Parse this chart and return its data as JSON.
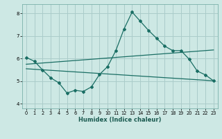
{
  "title": "",
  "xlabel": "Humidex (Indice chaleur)",
  "xlim": [
    -0.5,
    23.5
  ],
  "ylim": [
    3.8,
    8.4
  ],
  "yticks": [
    4,
    5,
    6,
    7,
    8
  ],
  "xticks": [
    0,
    1,
    2,
    3,
    4,
    5,
    6,
    7,
    8,
    9,
    10,
    11,
    12,
    13,
    14,
    15,
    16,
    17,
    18,
    19,
    20,
    21,
    22,
    23
  ],
  "background_color": "#cde8e4",
  "grid_color": "#aaccca",
  "line_color": "#1a6e64",
  "line1_x": [
    0,
    1,
    2,
    3,
    4,
    5,
    6,
    7,
    8,
    9,
    10,
    11,
    12,
    13,
    14,
    15,
    16,
    17,
    18,
    19,
    20,
    21,
    22,
    23
  ],
  "line1_y": [
    6.05,
    5.88,
    5.5,
    5.15,
    4.93,
    4.48,
    4.6,
    4.55,
    4.75,
    5.3,
    5.65,
    6.35,
    7.3,
    8.05,
    7.65,
    7.25,
    6.9,
    6.55,
    6.35,
    6.35,
    5.98,
    5.45,
    5.28,
    5.02
  ],
  "line2_x": [
    0,
    23
  ],
  "line2_y": [
    5.75,
    6.38
  ],
  "line3_x": [
    0,
    23
  ],
  "line3_y": [
    5.55,
    5.02
  ]
}
